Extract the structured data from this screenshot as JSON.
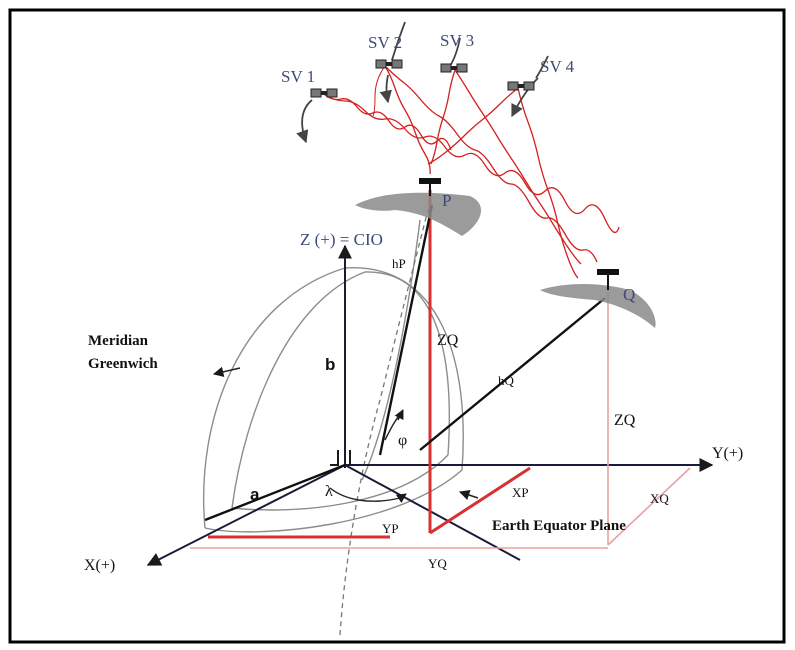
{
  "labels": {
    "sv1": "SV 1",
    "sv2": "SV 2",
    "sv3": "SV 3",
    "sv4": "SV 4",
    "point_p": "P",
    "point_q": "Q",
    "z_axis": "Z (+) = CIO",
    "y_axis": "Y(+)",
    "x_axis": "X(+)",
    "meridian_line1": "Meridian",
    "meridian_line2": "Greenwich",
    "b": "b",
    "a": "a",
    "lambda": "λ",
    "phi": "φ",
    "hp": "hP",
    "hq": "hQ",
    "zq_inner": "ZQ",
    "zq_outer": "ZQ",
    "xp": "XP",
    "xq": "XQ",
    "yp": "YP",
    "yq": "YQ",
    "equator_plane": "Earth Equator Plane"
  },
  "icons": {
    "satellite": "satellite-icon",
    "receiver": "antenna-receiver-icon",
    "orbit_arrow": "orbit-arrow-icon"
  },
  "colors": {
    "frame": "#000000",
    "signal": "#d42020",
    "coordinate_red": "#d93030",
    "coordinate_pink": "#e8a0a0",
    "axis": "#1a1a3a",
    "ellipsoid": "#8c8c8c",
    "satellite_label": "#3b4a7a",
    "terrain": "#8a8a8a"
  }
}
